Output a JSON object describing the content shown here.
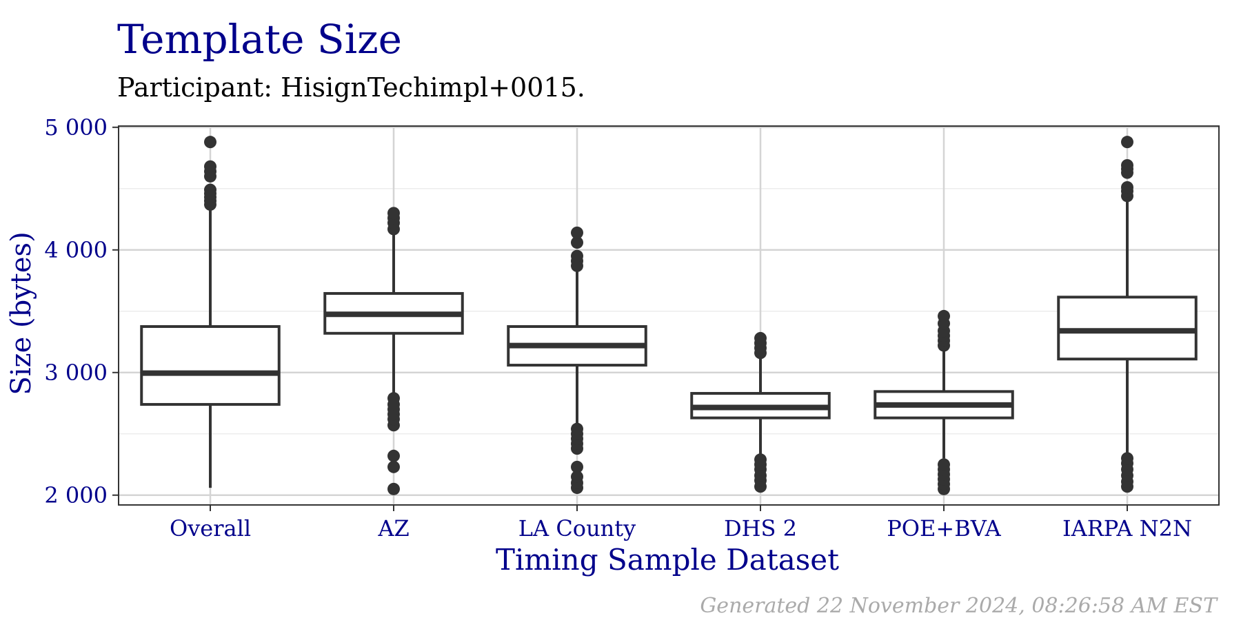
{
  "chart_data": {
    "type": "boxplot",
    "title": "Template Size",
    "subtitle": "Participant: HisignTechimpl+0015.",
    "xlabel": "Timing Sample Dataset",
    "ylabel": "Size (bytes)",
    "caption": "Generated 22 November 2024, 08:26:58 AM EST",
    "ylim": [
      1920,
      5010
    ],
    "y_ticks": [
      2000,
      3000,
      4000,
      5000
    ],
    "y_tick_labels": [
      "2 000",
      "3 000",
      "4 000",
      "5 000"
    ],
    "y_minor_ticks": [
      2500,
      3500,
      4500
    ],
    "grid": true,
    "categories": [
      "Overall",
      "AZ",
      "LA County",
      "DHS 2",
      "POE+BVA",
      "IARPA N2N"
    ],
    "boxes": [
      {
        "category": "Overall",
        "q1": 2740,
        "median": 2995,
        "q3": 3375,
        "whisker_low": 2060,
        "whisker_high": 4360,
        "outliers": [
          4370,
          4400,
          4430,
          4460,
          4490,
          4600,
          4640,
          4680,
          4880
        ]
      },
      {
        "category": "AZ",
        "q1": 3320,
        "median": 3475,
        "q3": 3645,
        "whisker_low": 2820,
        "whisker_high": 4150,
        "outliers": [
          2050,
          2230,
          2320,
          2570,
          2620,
          2660,
          2700,
          2740,
          2790,
          4170,
          4220,
          4260,
          4300
        ]
      },
      {
        "category": "LA County",
        "q1": 3060,
        "median": 3220,
        "q3": 3375,
        "whisker_low": 2570,
        "whisker_high": 3850,
        "outliers": [
          2060,
          2100,
          2150,
          2230,
          2380,
          2420,
          2460,
          2500,
          2540,
          3870,
          3910,
          3950,
          4060,
          4140
        ]
      },
      {
        "category": "DHS 2",
        "q1": 2630,
        "median": 2715,
        "q3": 2830,
        "whisker_low": 2310,
        "whisker_high": 3140,
        "outliers": [
          2070,
          2120,
          2160,
          2210,
          2250,
          2290,
          3160,
          3200,
          3240,
          3280
        ]
      },
      {
        "category": "POE+BVA",
        "q1": 2630,
        "median": 2735,
        "q3": 2845,
        "whisker_low": 2300,
        "whisker_high": 3180,
        "outliers": [
          2050,
          2090,
          2130,
          2170,
          2210,
          2250,
          3220,
          3260,
          3300,
          3340,
          3400,
          3460
        ]
      },
      {
        "category": "IARPA N2N",
        "q1": 3110,
        "median": 3340,
        "q3": 3615,
        "whisker_low": 2340,
        "whisker_high": 4420,
        "outliers": [
          2070,
          2110,
          2160,
          2210,
          2260,
          2300,
          4440,
          4480,
          4510,
          4630,
          4660,
          4690,
          4880
        ]
      }
    ],
    "colors": {
      "title": "#00008B",
      "box_stroke": "#333333",
      "grid_major": "#d4d4d4",
      "grid_minor": "#ececec",
      "panel_border": "#333333",
      "caption": "#aaaaaa"
    }
  }
}
